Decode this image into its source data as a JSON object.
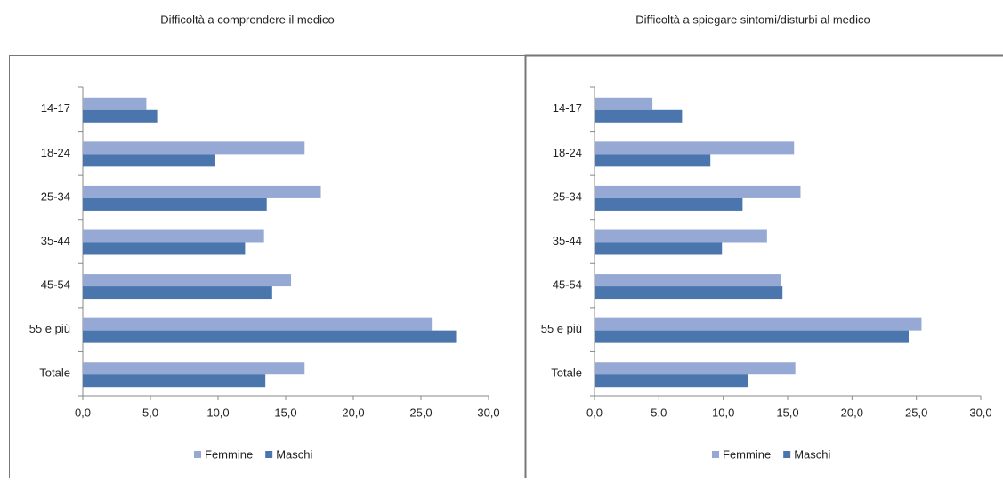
{
  "chart_data": [
    {
      "type": "barh",
      "title": "Difficoltà a comprendere il medico",
      "categories": [
        "14-17",
        "18-24",
        "25-34",
        "35-44",
        "45-54",
        "55 e più",
        "Totale"
      ],
      "series": [
        {
          "name": "Femmine",
          "color": "#95a9d4",
          "values": [
            4.7,
            16.4,
            17.6,
            13.4,
            15.4,
            25.8,
            16.4
          ]
        },
        {
          "name": "Maschi",
          "color": "#4a75ad",
          "values": [
            5.5,
            9.8,
            13.6,
            12.0,
            14.0,
            27.6,
            13.5
          ]
        }
      ],
      "xlim": [
        0,
        30
      ],
      "xticks": [
        {
          "value": 0,
          "label": "0,0"
        },
        {
          "value": 5,
          "label": "5,0"
        },
        {
          "value": 10,
          "label": "10,0"
        },
        {
          "value": 15,
          "label": "15,0"
        },
        {
          "value": 20,
          "label": "20,0"
        },
        {
          "value": 25,
          "label": "25,0"
        },
        {
          "value": 30,
          "label": "30,0"
        }
      ],
      "legend": "bottom"
    },
    {
      "type": "barh",
      "title": "Difficoltà a spiegare sintomi/disturbi al medico",
      "categories": [
        "14-17",
        "18-24",
        "25-34",
        "35-44",
        "45-54",
        "55 e più",
        "Totale"
      ],
      "series": [
        {
          "name": "Femmine",
          "color": "#95a9d4",
          "values": [
            4.5,
            15.5,
            16.0,
            13.4,
            14.5,
            25.4,
            15.6
          ]
        },
        {
          "name": "Maschi",
          "color": "#4a75ad",
          "values": [
            6.8,
            9.0,
            11.5,
            9.9,
            14.6,
            24.4,
            11.9
          ]
        }
      ],
      "xlim": [
        0,
        30
      ],
      "xticks": [
        {
          "value": 0,
          "label": "0,0"
        },
        {
          "value": 5,
          "label": "5,0"
        },
        {
          "value": 10,
          "label": "10,0"
        },
        {
          "value": 15,
          "label": "15,0"
        },
        {
          "value": 20,
          "label": "20,0"
        },
        {
          "value": 25,
          "label": "25,0"
        },
        {
          "value": 30,
          "label": "30,0"
        }
      ],
      "legend": "bottom"
    }
  ]
}
